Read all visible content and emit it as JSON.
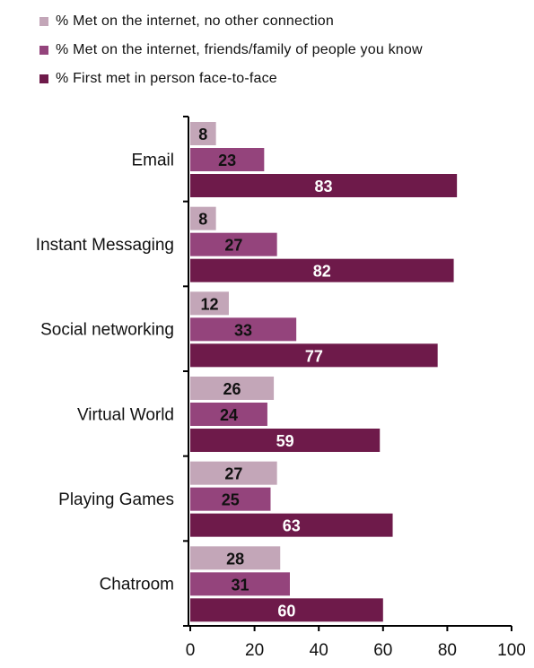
{
  "legend": [
    {
      "label": "% Met on the internet, no other connection",
      "color": "#c3a6b8"
    },
    {
      "label": "% Met on the internet, friends/family of people you know",
      "color": "#94447c"
    },
    {
      "label": "% First met in person face-to-face",
      "color": "#6e1a4a"
    }
  ],
  "chart_data": {
    "type": "bar",
    "orientation": "horizontal",
    "categories": [
      "Email",
      "Instant Messaging",
      "Social networking",
      "Virtual World",
      "Playing Games",
      "Chatroom"
    ],
    "series": [
      {
        "name": "% Met on the internet, no other connection",
        "color": "#c3a6b8",
        "values": [
          8,
          8,
          12,
          26,
          27,
          28
        ]
      },
      {
        "name": "% Met on the internet, friends/family of people you know",
        "color": "#94447c",
        "values": [
          23,
          27,
          33,
          24,
          25,
          31
        ]
      },
      {
        "name": "% First met in person face-to-face",
        "color": "#6e1a4a",
        "values": [
          83,
          82,
          77,
          59,
          63,
          60
        ]
      }
    ],
    "xlim": [
      0,
      100
    ],
    "xticks": [
      0,
      20,
      40,
      60,
      80,
      100
    ],
    "xlabel": "",
    "ylabel": "",
    "title": "",
    "legend_position": "top",
    "grid": false
  }
}
